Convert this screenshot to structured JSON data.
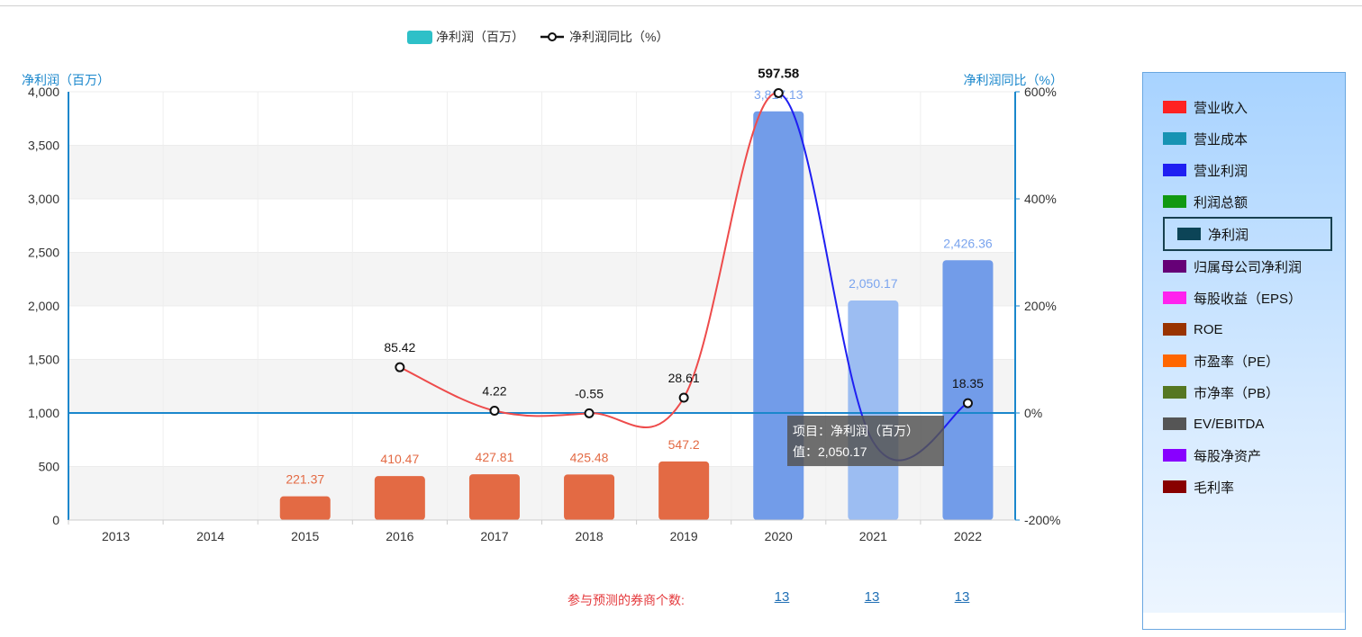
{
  "legend": {
    "bar_label": "净利润（百万）",
    "line_label": "净利润同比（%）",
    "bar_color": "#2ec0c8",
    "line_marker": "-o-"
  },
  "chart_data": {
    "type": "bar",
    "categories": [
      "2013",
      "2014",
      "2015",
      "2016",
      "2017",
      "2018",
      "2019",
      "2020",
      "2021",
      "2022"
    ],
    "series": [
      {
        "name": "净利润（百万）",
        "axis": "left",
        "values": [
          null,
          null,
          221.37,
          410.47,
          427.81,
          425.48,
          547.2,
          3817.13,
          2050.17,
          2426.36
        ],
        "labels": [
          "",
          "",
          "221.37",
          "410.47",
          "427.81",
          "425.48",
          "547.2",
          "3,817.13",
          "2,050.17",
          "2,426.36"
        ],
        "colors": [
          "",
          "",
          "#e36a44",
          "#e36a44",
          "#e36a44",
          "#e36a44",
          "#e36a44",
          "#729ce9",
          "#9cbdf2",
          "#729ce9"
        ]
      },
      {
        "name": "净利润同比（%）",
        "type": "line",
        "axis": "right",
        "values": [
          null,
          null,
          null,
          85.42,
          4.22,
          -0.55,
          28.61,
          597.58,
          -54.0,
          18.35
        ],
        "labels": [
          "",
          "",
          "",
          "85.42",
          "4.22",
          "-0.55",
          "28.61",
          "597.58",
          "",
          "18.35"
        ]
      }
    ],
    "y_left": {
      "title": "净利润（百万）",
      "ticks": [
        "4,000",
        "3,500",
        "3,000",
        "2,500",
        "2,000",
        "1,500",
        "1,000",
        "500",
        "0"
      ],
      "min": 0,
      "max": 4000
    },
    "y_right": {
      "title": "净利润同比（%）",
      "ticks": [
        "600%",
        "400%",
        "200%",
        "0%",
        "-200%"
      ],
      "min": -200,
      "max": 600
    },
    "tooltip": {
      "line1": "项目：净利润（百万）",
      "line2": "值：2,050.17"
    }
  },
  "brokers": {
    "label": "参与预测的券商个数:",
    "counts": [
      "13",
      "13",
      "13"
    ]
  },
  "metrics": [
    {
      "label": "营业收入",
      "color": "#ff2222"
    },
    {
      "label": "营业成本",
      "color": "#1793b3"
    },
    {
      "label": "营业利润",
      "color": "#1f1ff2"
    },
    {
      "label": "利润总额",
      "color": "#119911"
    },
    {
      "label": "净利润",
      "color": "#0c4457",
      "selected": true
    },
    {
      "label": "归属母公司净利润",
      "color": "#660077"
    },
    {
      "label": "每股收益（EPS）",
      "color": "#ff22ee"
    },
    {
      "label": "ROE",
      "color": "#993300"
    },
    {
      "label": "市盈率（PE）",
      "color": "#ff6600"
    },
    {
      "label": "市净率（PB）",
      "color": "#557722"
    },
    {
      "label": "EV/EBITDA",
      "color": "#555555"
    },
    {
      "label": "每股净资产",
      "color": "#8800ff"
    },
    {
      "label": "毛利率",
      "color": "#880000"
    }
  ]
}
